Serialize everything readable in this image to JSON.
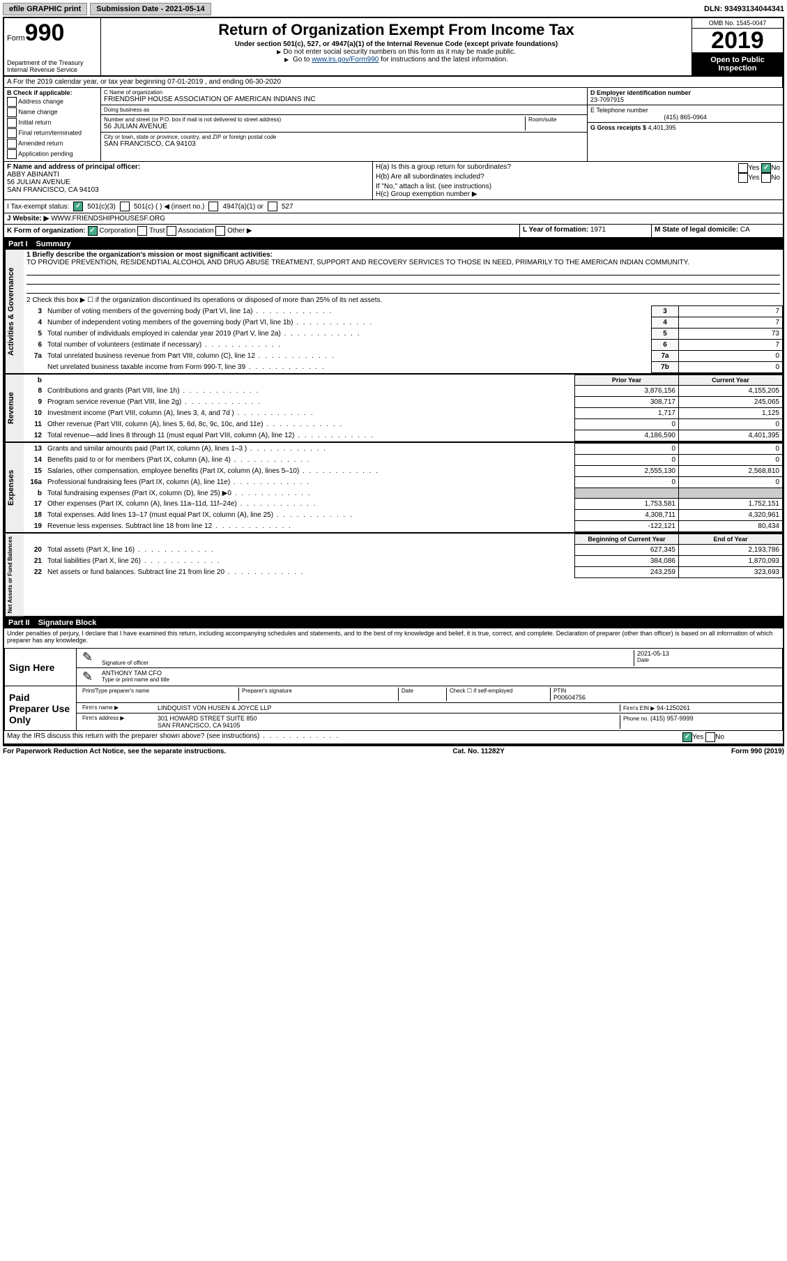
{
  "topbar": {
    "efile": "efile GRAPHIC print",
    "submission": "Submission Date - 2021-05-14",
    "dln": "DLN: 93493134044341"
  },
  "header": {
    "form_label": "Form",
    "form_number": "990",
    "dept": "Department of the Treasury",
    "irs": "Internal Revenue Service",
    "title": "Return of Organization Exempt From Income Tax",
    "subtitle": "Under section 501(c), 527, or 4947(a)(1) of the Internal Revenue Code (except private foundations)",
    "note1": "Do not enter social security numbers on this form as it may be made public.",
    "note2_pre": "Go to ",
    "note2_link": "www.irs.gov/Form990",
    "note2_post": " for instructions and the latest information.",
    "omb": "OMB No. 1545-0047",
    "year": "2019",
    "open": "Open to Public Inspection"
  },
  "line_a": "A For the 2019 calendar year, or tax year beginning 07-01-2019   , and ending 06-30-2020",
  "section_b": {
    "label": "B Check if applicable:",
    "opts": [
      "Address change",
      "Name change",
      "Initial return",
      "Final return/terminated",
      "Amended return",
      "Application pending"
    ]
  },
  "section_c": {
    "name_lbl": "C Name of organization",
    "name": "FRIENDSHIP HOUSE ASSOCIATION OF AMERICAN INDIANS INC",
    "dba_lbl": "Doing business as",
    "dba": "",
    "addr_lbl": "Number and street (or P.O. box if mail is not delivered to street address)",
    "room_lbl": "Room/suite",
    "addr": "56 JULIAN AVENUE",
    "city_lbl": "City or town, state or province, country, and ZIP or foreign postal code",
    "city": "SAN FRANCISCO, CA  94103"
  },
  "section_d": {
    "ein_lbl": "D Employer identification number",
    "ein": "23-7097915",
    "tel_lbl": "E Telephone number",
    "tel": "(415) 865-0964",
    "gross_lbl": "G Gross receipts $",
    "gross": "4,401,395"
  },
  "section_f": {
    "lbl": "F Name and address of principal officer:",
    "name": "ABBY ABINANTI",
    "addr1": "56 JULIAN AVENUE",
    "addr2": "SAN FRANCISCO, CA  94103"
  },
  "section_h": {
    "a": "H(a)  Is this a group return for subordinates?",
    "b": "H(b)  Are all subordinates included?",
    "b_note": "If \"No,\" attach a list. (see instructions)",
    "c": "H(c)  Group exemption number ▶",
    "yes": "Yes",
    "no": "No"
  },
  "tax_exempt": {
    "lbl": "I  Tax-exempt status:",
    "o1": "501(c)(3)",
    "o2": "501(c) (   ) ◀ (insert no.)",
    "o3": "4947(a)(1) or",
    "o4": "527"
  },
  "website": {
    "lbl": "J  Website: ▶",
    "val": "WWW.FRIENDSHIPHOUSESF.ORG"
  },
  "line_k": {
    "lbl": "K Form of organization:",
    "corp": "Corporation",
    "trust": "Trust",
    "assoc": "Association",
    "other": "Other ▶"
  },
  "line_l": {
    "lbl": "L Year of formation:",
    "val": "1971"
  },
  "line_m": {
    "lbl": "M State of legal domicile:",
    "val": "CA"
  },
  "part1": {
    "title": "Part I",
    "name": "Summary",
    "q1": "1  Briefly describe the organization's mission or most significant activities:",
    "mission": "TO PROVIDE PREVENTION, RESIDENDTIAL ALCOHOL AND DRUG ABUSE TREATMENT, SUPPORT AND RECOVERY SERVICES TO THOSE IN NEED, PRIMARILY TO THE AMERICAN INDIAN COMMUNITY.",
    "q2": "2   Check this box ▶ ☐  if the organization discontinued its operations or disposed of more than 25% of its net assets.",
    "lines_gov": [
      {
        "n": "3",
        "t": "Number of voting members of the governing body (Part VI, line 1a)",
        "box": "3",
        "v": "7"
      },
      {
        "n": "4",
        "t": "Number of independent voting members of the governing body (Part VI, line 1b)",
        "box": "4",
        "v": "7"
      },
      {
        "n": "5",
        "t": "Total number of individuals employed in calendar year 2019 (Part V, line 2a)",
        "box": "5",
        "v": "73"
      },
      {
        "n": "6",
        "t": "Total number of volunteers (estimate if necessary)",
        "box": "6",
        "v": "7"
      },
      {
        "n": "7a",
        "t": "Total unrelated business revenue from Part VIII, column (C), line 12",
        "box": "7a",
        "v": "0"
      },
      {
        "n": "",
        "t": "Net unrelated business taxable income from Form 990-T, line 39",
        "box": "7b",
        "v": "0"
      }
    ],
    "b_label": "b",
    "prior": "Prior Year",
    "current": "Current Year",
    "rev": [
      {
        "n": "8",
        "t": "Contributions and grants (Part VIII, line 1h)",
        "p": "3,876,156",
        "c": "4,155,205"
      },
      {
        "n": "9",
        "t": "Program service revenue (Part VIII, line 2g)",
        "p": "308,717",
        "c": "245,065"
      },
      {
        "n": "10",
        "t": "Investment income (Part VIII, column (A), lines 3, 4, and 7d )",
        "p": "1,717",
        "c": "1,125"
      },
      {
        "n": "11",
        "t": "Other revenue (Part VIII, column (A), lines 5, 6d, 8c, 9c, 10c, and 11e)",
        "p": "0",
        "c": "0"
      },
      {
        "n": "12",
        "t": "Total revenue—add lines 8 through 11 (must equal Part VIII, column (A), line 12)",
        "p": "4,186,590",
        "c": "4,401,395"
      }
    ],
    "exp": [
      {
        "n": "13",
        "t": "Grants and similar amounts paid (Part IX, column (A), lines 1–3 )",
        "p": "0",
        "c": "0"
      },
      {
        "n": "14",
        "t": "Benefits paid to or for members (Part IX, column (A), line 4)",
        "p": "0",
        "c": "0"
      },
      {
        "n": "15",
        "t": "Salaries, other compensation, employee benefits (Part IX, column (A), lines 5–10)",
        "p": "2,555,130",
        "c": "2,568,810"
      },
      {
        "n": "16a",
        "t": "Professional fundraising fees (Part IX, column (A), line 11e)",
        "p": "0",
        "c": "0"
      },
      {
        "n": "b",
        "t": "Total fundraising expenses (Part IX, column (D), line 25) ▶0",
        "p": "",
        "c": "",
        "shade": true
      },
      {
        "n": "17",
        "t": "Other expenses (Part IX, column (A), lines 11a–11d, 11f–24e)",
        "p": "1,753,581",
        "c": "1,752,151"
      },
      {
        "n": "18",
        "t": "Total expenses. Add lines 13–17 (must equal Part IX, column (A), line 25)",
        "p": "4,308,711",
        "c": "4,320,961"
      },
      {
        "n": "19",
        "t": "Revenue less expenses. Subtract line 18 from line 12",
        "p": "-122,121",
        "c": "80,434"
      }
    ],
    "boy": "Beginning of Current Year",
    "eoy": "End of Year",
    "net": [
      {
        "n": "20",
        "t": "Total assets (Part X, line 16)",
        "p": "627,345",
        "c": "2,193,786"
      },
      {
        "n": "21",
        "t": "Total liabilities (Part X, line 26)",
        "p": "384,086",
        "c": "1,870,093"
      },
      {
        "n": "22",
        "t": "Net assets or fund balances. Subtract line 21 from line 20",
        "p": "243,259",
        "c": "323,693"
      }
    ],
    "vlabels": {
      "gov": "Activities & Governance",
      "rev": "Revenue",
      "exp": "Expenses",
      "net": "Net Assets or Fund Balances"
    }
  },
  "part2": {
    "title": "Part II",
    "name": "Signature Block",
    "decl": "Under penalties of perjury, I declare that I have examined this return, including accompanying schedules and statements, and to the best of my knowledge and belief, it is true, correct, and complete. Declaration of preparer (other than officer) is based on all information of which preparer has any knowledge.",
    "sign_here": "Sign Here",
    "sig_officer": "Signature of officer",
    "date_lbl": "Date",
    "date": "2021-05-13",
    "officer": "ANTHONY TAM CFO",
    "type_name": "Type or print name and title",
    "paid": "Paid Preparer Use Only",
    "prep_name_lbl": "Print/Type preparer's name",
    "prep_sig_lbl": "Preparer's signature",
    "check_self": "Check ☐ if self-employed",
    "ptin_lbl": "PTIN",
    "ptin": "P00604756",
    "firm_name_lbl": "Firm's name   ▶",
    "firm_name": "LINDQUIST VON HUSEN & JOYCE LLP",
    "firm_ein_lbl": "Firm's EIN ▶",
    "firm_ein": "94-1250261",
    "firm_addr_lbl": "Firm's address ▶",
    "firm_addr1": "301 HOWARD STREET SUITE 850",
    "firm_addr2": "SAN FRANCISCO, CA  94105",
    "phone_lbl": "Phone no.",
    "phone": "(415) 957-9999",
    "discuss": "May the IRS discuss this return with the preparer shown above? (see instructions)"
  },
  "footer": {
    "left": "For Paperwork Reduction Act Notice, see the separate instructions.",
    "mid": "Cat. No. 11282Y",
    "right": "Form 990 (2019)"
  }
}
